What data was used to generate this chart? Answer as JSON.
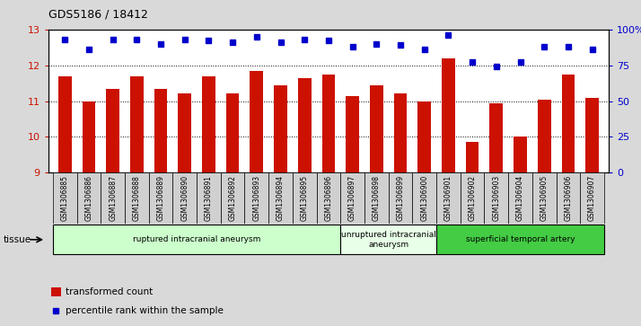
{
  "title": "GDS5186 / 18412",
  "samples": [
    "GSM1306885",
    "GSM1306886",
    "GSM1306887",
    "GSM1306888",
    "GSM1306889",
    "GSM1306890",
    "GSM1306891",
    "GSM1306892",
    "GSM1306893",
    "GSM1306894",
    "GSM1306895",
    "GSM1306896",
    "GSM1306897",
    "GSM1306898",
    "GSM1306899",
    "GSM1306900",
    "GSM1306901",
    "GSM1306902",
    "GSM1306903",
    "GSM1306904",
    "GSM1306905",
    "GSM1306906",
    "GSM1306907"
  ],
  "bar_values": [
    11.7,
    11.0,
    11.35,
    11.7,
    11.35,
    11.22,
    11.7,
    11.22,
    11.85,
    11.45,
    11.65,
    11.75,
    11.15,
    11.45,
    11.22,
    11.0,
    12.2,
    9.85,
    10.95,
    10.0,
    11.05,
    11.75,
    11.1
  ],
  "dot_values": [
    93,
    86,
    93,
    93,
    90,
    93,
    92,
    91,
    95,
    91,
    93,
    92,
    88,
    90,
    89,
    86,
    96,
    77,
    74,
    77,
    88,
    88,
    86
  ],
  "bar_color": "#cc1100",
  "dot_color": "#0000cc",
  "ylim_left": [
    9,
    13
  ],
  "ylim_right": [
    0,
    100
  ],
  "yticks_left": [
    9,
    10,
    11,
    12,
    13
  ],
  "yticks_right": [
    0,
    25,
    50,
    75,
    100
  ],
  "ytick_labels_right": [
    "0",
    "25",
    "50",
    "75",
    "100%"
  ],
  "groups": [
    {
      "label": "ruptured intracranial aneurysm",
      "start": 0,
      "end": 12,
      "color": "#ccffcc"
    },
    {
      "label": "unruptured intracranial\naneurysm",
      "start": 12,
      "end": 16,
      "color": "#e8ffe8"
    },
    {
      "label": "superficial temporal artery",
      "start": 16,
      "end": 23,
      "color": "#44cc44"
    }
  ],
  "tissue_label": "tissue",
  "legend_bar_label": "transformed count",
  "legend_dot_label": "percentile rank within the sample",
  "background_color": "#d9d9d9",
  "plot_bg_color": "#ffffff",
  "xtick_bg_color": "#d0d0d0"
}
